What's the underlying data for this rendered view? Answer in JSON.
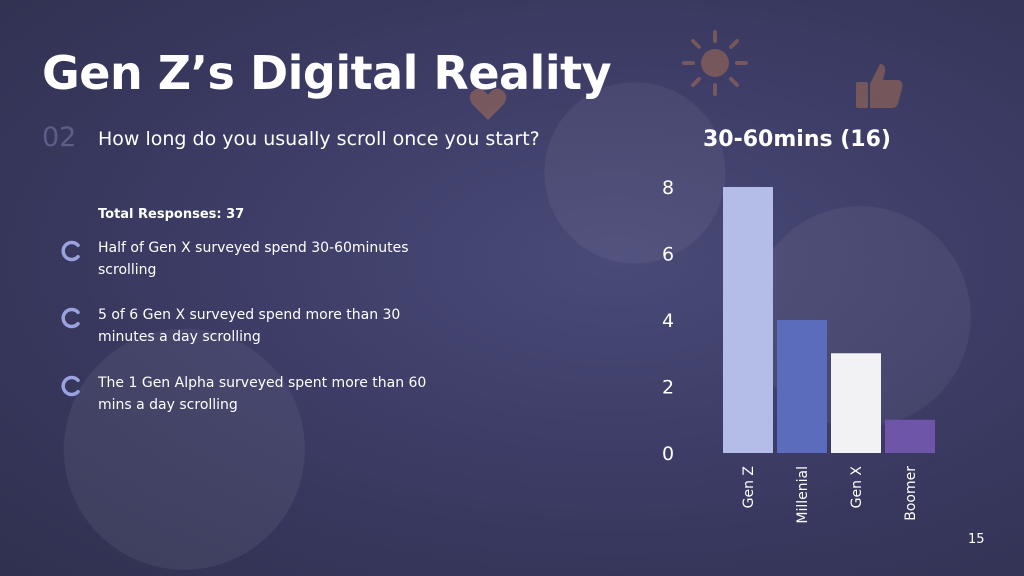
{
  "slide": {
    "title": "Gen Z’s Digital Reality",
    "question_number": "02",
    "question": "How long do you usually scroll once you start?",
    "total_responses": "Total Responses: 37",
    "page_number": "15"
  },
  "bullets": [
    {
      "icon": "circle-arc-icon",
      "text": "Half of Gen X surveyed spend 30-60minutes scrolling"
    },
    {
      "icon": "circle-arc-icon",
      "text": "5 of 6 Gen X surveyed spend more than 30 minutes a day scrolling"
    },
    {
      "icon": "circle-arc-icon",
      "text": "The 1 Gen Alpha surveyed spent more than 60 mins a day scrolling"
    }
  ],
  "colors": {
    "background": "#3c3c66",
    "accent_icon": "#9aa2e0",
    "bar_gen_z": "#b3bde8",
    "bar_millenial": "#5c6cbc",
    "bar_gen_x": "#f2f2f4",
    "bar_boomer": "#6f55a8"
  },
  "chart_data": {
    "type": "bar",
    "title": "30-60mins (16)",
    "categories": [
      "Gen Z",
      "Millenial",
      "Gen X",
      "Boomer"
    ],
    "values": [
      8,
      4,
      3,
      1
    ],
    "bar_colors": [
      "#b3bde8",
      "#5c6cbc",
      "#f2f2f4",
      "#6f55a8"
    ],
    "ylim": [
      0,
      8
    ],
    "yticks": [
      "0",
      "2",
      "4",
      "6",
      "8"
    ],
    "xlabel": "",
    "ylabel": "",
    "grid": false,
    "legend": "none"
  }
}
